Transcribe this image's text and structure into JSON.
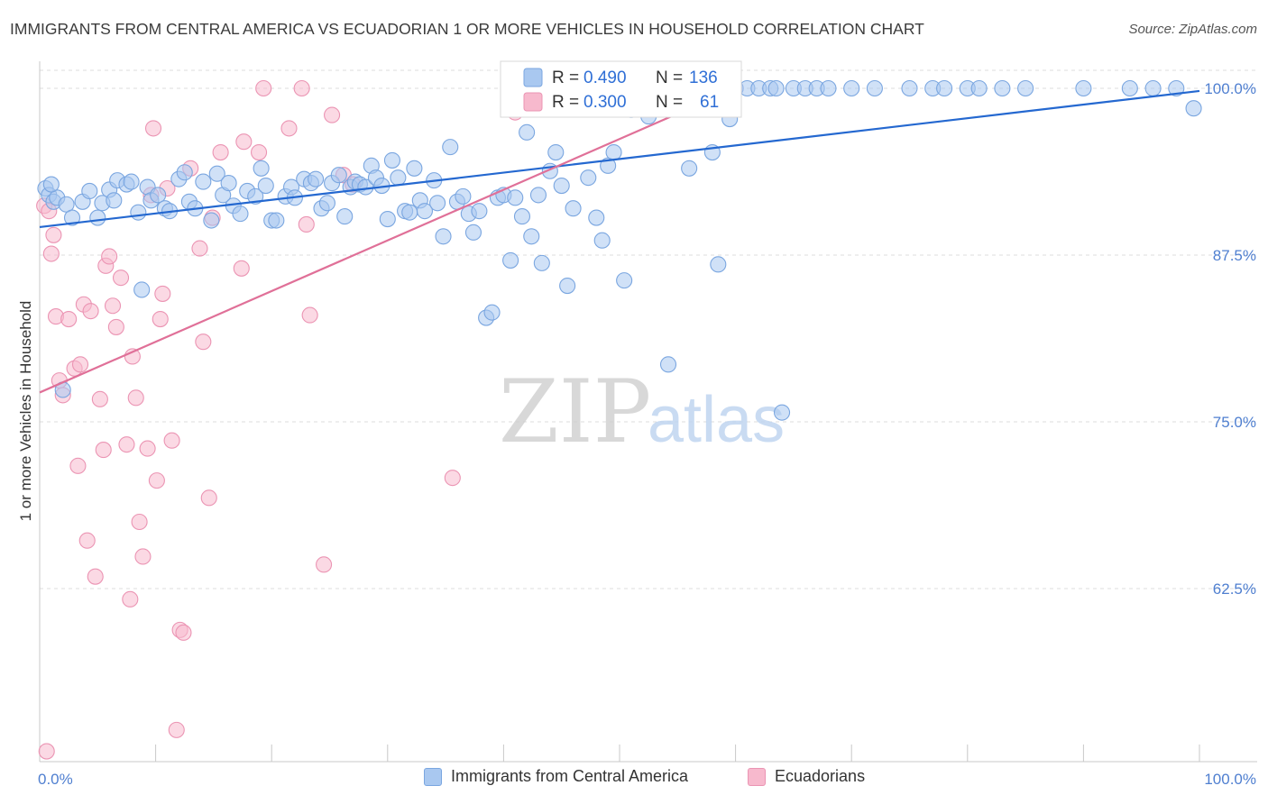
{
  "header": {
    "title": "IMMIGRANTS FROM CENTRAL AMERICA VS ECUADORIAN 1 OR MORE VEHICLES IN HOUSEHOLD CORRELATION CHART",
    "source": "Source: ZipAtlas.com"
  },
  "watermark": {
    "zip": "ZIP",
    "atlas": "atlas"
  },
  "legend_top": {
    "blue": {
      "r_label": "R = ",
      "r_value": "0.490",
      "n_label": "N = ",
      "n_value": "136"
    },
    "pink": {
      "r_label": "R = ",
      "r_value": "0.300",
      "n_label": "N = ",
      "n_value": "61"
    }
  },
  "legend_bottom": {
    "blue_label": "Immigrants from Central America",
    "pink_label": "Ecuadorians"
  },
  "colors": {
    "blue_fill": "#a9c8f0",
    "blue_stroke": "#7aa6e0",
    "blue_line": "#2468d0",
    "pink_fill": "#f7b9cd",
    "pink_stroke": "#eb94b3",
    "pink_line": "#e07098",
    "tick": "#4f7fd0",
    "grid": "#dcdcdc"
  },
  "chart_data": {
    "type": "scatter",
    "title": "IMMIGRANTS FROM CENTRAL AMERICA VS ECUADORIAN 1 OR MORE VEHICLES IN HOUSEHOLD CORRELATION CHART",
    "xlabel": "",
    "ylabel": "1 or more Vehicles in Household",
    "xlim": [
      0,
      100
    ],
    "ylim": [
      50,
      101.5
    ],
    "x_tick_labels": [
      "0.0%",
      "100.0%"
    ],
    "y_ticks": [
      62.5,
      75.0,
      87.5,
      100.0
    ],
    "y_tick_labels": [
      "62.5%",
      "75.0%",
      "87.5%",
      "100.0%"
    ],
    "grid": true,
    "legend_position": "top-center",
    "series": [
      {
        "name": "Immigrants from Central America",
        "color": "#a9c8f0",
        "trend": {
          "x": [
            0,
            100
          ],
          "y": [
            89.6,
            99.8
          ]
        },
        "points": [
          [
            0.5,
            92.5
          ],
          [
            0.8,
            92.0
          ],
          [
            1.2,
            91.5
          ],
          [
            1.5,
            91.8
          ],
          [
            2.3,
            91.3
          ],
          [
            2.8,
            90.3
          ],
          [
            3.7,
            91.5
          ],
          [
            4.3,
            92.3
          ],
          [
            5.0,
            90.3
          ],
          [
            5.4,
            91.4
          ],
          [
            6.0,
            92.4
          ],
          [
            6.4,
            91.6
          ],
          [
            6.7,
            93.1
          ],
          [
            7.5,
            92.8
          ],
          [
            7.9,
            93.0
          ],
          [
            8.5,
            90.7
          ],
          [
            8.8,
            84.9
          ],
          [
            9.3,
            92.6
          ],
          [
            9.6,
            91.6
          ],
          [
            10.2,
            92.0
          ],
          [
            10.8,
            91.0
          ],
          [
            11.2,
            90.8
          ],
          [
            12.0,
            93.2
          ],
          [
            12.5,
            93.7
          ],
          [
            12.9,
            91.5
          ],
          [
            13.4,
            91.0
          ],
          [
            14.1,
            93.0
          ],
          [
            14.8,
            90.1
          ],
          [
            15.3,
            93.6
          ],
          [
            15.8,
            92.0
          ],
          [
            16.3,
            92.9
          ],
          [
            16.7,
            91.2
          ],
          [
            17.3,
            90.6
          ],
          [
            17.9,
            92.3
          ],
          [
            18.6,
            91.9
          ],
          [
            19.1,
            94.0
          ],
          [
            19.5,
            92.7
          ],
          [
            20.0,
            90.1
          ],
          [
            20.4,
            90.1
          ],
          [
            21.2,
            91.9
          ],
          [
            21.7,
            92.6
          ],
          [
            22.0,
            91.8
          ],
          [
            22.8,
            93.2
          ],
          [
            23.4,
            92.9
          ],
          [
            23.8,
            93.2
          ],
          [
            24.3,
            91.0
          ],
          [
            24.8,
            91.4
          ],
          [
            25.2,
            92.9
          ],
          [
            25.8,
            93.5
          ],
          [
            26.3,
            90.4
          ],
          [
            26.8,
            92.6
          ],
          [
            27.2,
            93.0
          ],
          [
            27.6,
            92.8
          ],
          [
            28.1,
            92.6
          ],
          [
            28.6,
            94.2
          ],
          [
            29.0,
            93.3
          ],
          [
            29.5,
            92.7
          ],
          [
            30.0,
            90.2
          ],
          [
            30.4,
            94.6
          ],
          [
            30.9,
            93.3
          ],
          [
            31.5,
            90.8
          ],
          [
            31.9,
            90.7
          ],
          [
            32.3,
            94.0
          ],
          [
            32.8,
            91.6
          ],
          [
            33.2,
            90.8
          ],
          [
            34.0,
            93.1
          ],
          [
            34.3,
            91.4
          ],
          [
            34.8,
            88.9
          ],
          [
            35.4,
            95.6
          ],
          [
            36.0,
            91.5
          ],
          [
            36.5,
            91.9
          ],
          [
            37.0,
            90.6
          ],
          [
            37.4,
            89.2
          ],
          [
            37.9,
            90.8
          ],
          [
            38.5,
            82.8
          ],
          [
            39.0,
            83.2
          ],
          [
            39.5,
            91.8
          ],
          [
            40.0,
            92.0
          ],
          [
            40.6,
            87.1
          ],
          [
            41.0,
            91.8
          ],
          [
            41.6,
            90.4
          ],
          [
            42.0,
            96.7
          ],
          [
            42.4,
            88.9
          ],
          [
            43.0,
            92.0
          ],
          [
            43.3,
            86.9
          ],
          [
            44.0,
            93.8
          ],
          [
            44.5,
            95.2
          ],
          [
            45.0,
            92.7
          ],
          [
            45.5,
            85.2
          ],
          [
            46.0,
            91.0
          ],
          [
            46.5,
            100.0
          ],
          [
            47.3,
            93.3
          ],
          [
            48.0,
            90.3
          ],
          [
            48.5,
            88.6
          ],
          [
            49.0,
            94.2
          ],
          [
            49.5,
            95.2
          ],
          [
            50.4,
            85.6
          ],
          [
            51.0,
            98.4
          ],
          [
            52.5,
            97.9
          ],
          [
            53.0,
            100.0
          ],
          [
            54.2,
            79.3
          ],
          [
            55.0,
            100.0
          ],
          [
            56.0,
            94.0
          ],
          [
            57.0,
            99.8
          ],
          [
            58.0,
            95.2
          ],
          [
            58.5,
            86.8
          ],
          [
            59.5,
            97.7
          ],
          [
            60.0,
            100.0
          ],
          [
            61.0,
            100.0
          ],
          [
            62.0,
            100.0
          ],
          [
            63.0,
            100.0
          ],
          [
            63.5,
            100.0
          ],
          [
            64.0,
            75.7
          ],
          [
            65.0,
            100.0
          ],
          [
            66.0,
            100.0
          ],
          [
            67.0,
            100.0
          ],
          [
            68.0,
            100.0
          ],
          [
            70.0,
            100.0
          ],
          [
            72.0,
            100.0
          ],
          [
            75.0,
            100.0
          ],
          [
            77.0,
            100.0
          ],
          [
            78.0,
            100.0
          ],
          [
            80.0,
            100.0
          ],
          [
            81.0,
            100.0
          ],
          [
            83.0,
            100.0
          ],
          [
            85.0,
            100.0
          ],
          [
            90.0,
            100.0
          ],
          [
            94.0,
            100.0
          ],
          [
            96.0,
            100.0
          ],
          [
            98.0,
            100.0
          ],
          [
            2.0,
            77.4
          ],
          [
            1.0,
            92.8
          ],
          [
            45.5,
            100.0
          ],
          [
            47.0,
            100.0
          ],
          [
            48.0,
            100.0
          ],
          [
            99.5,
            98.5
          ]
        ]
      },
      {
        "name": "Ecuadorians",
        "color": "#f7b9cd",
        "trend": {
          "x": [
            0,
            60
          ],
          "y": [
            77.2,
            100.0
          ]
        },
        "points": [
          [
            0.4,
            91.2
          ],
          [
            0.8,
            90.8
          ],
          [
            1.0,
            87.6
          ],
          [
            1.2,
            89.0
          ],
          [
            1.4,
            82.9
          ],
          [
            1.7,
            78.1
          ],
          [
            2.0,
            77.0
          ],
          [
            2.5,
            82.7
          ],
          [
            3.0,
            79.0
          ],
          [
            3.3,
            71.7
          ],
          [
            3.5,
            79.3
          ],
          [
            3.8,
            83.8
          ],
          [
            4.1,
            66.1
          ],
          [
            4.4,
            83.3
          ],
          [
            4.8,
            63.4
          ],
          [
            5.2,
            76.7
          ],
          [
            5.5,
            72.9
          ],
          [
            5.7,
            86.7
          ],
          [
            6.0,
            87.4
          ],
          [
            6.3,
            83.7
          ],
          [
            6.6,
            82.1
          ],
          [
            7.0,
            85.8
          ],
          [
            7.5,
            73.3
          ],
          [
            7.8,
            61.7
          ],
          [
            8.0,
            79.9
          ],
          [
            8.3,
            76.8
          ],
          [
            8.6,
            67.5
          ],
          [
            8.9,
            64.9
          ],
          [
            9.3,
            73.0
          ],
          [
            9.6,
            92.0
          ],
          [
            9.8,
            97.0
          ],
          [
            10.1,
            70.6
          ],
          [
            10.4,
            82.7
          ],
          [
            10.6,
            84.6
          ],
          [
            11.0,
            92.5
          ],
          [
            11.4,
            73.6
          ],
          [
            11.8,
            51.9
          ],
          [
            12.1,
            59.4
          ],
          [
            12.4,
            59.2
          ],
          [
            13.0,
            94.0
          ],
          [
            13.8,
            88.0
          ],
          [
            14.1,
            81.0
          ],
          [
            14.6,
            69.3
          ],
          [
            14.9,
            90.3
          ],
          [
            15.6,
            95.2
          ],
          [
            17.4,
            86.5
          ],
          [
            17.6,
            96.0
          ],
          [
            18.9,
            95.2
          ],
          [
            19.3,
            100.0
          ],
          [
            21.5,
            97.0
          ],
          [
            22.6,
            100.0
          ],
          [
            23.0,
            89.8
          ],
          [
            23.3,
            83.0
          ],
          [
            24.5,
            64.3
          ],
          [
            25.2,
            98.0
          ],
          [
            26.2,
            93.5
          ],
          [
            27.0,
            92.8
          ],
          [
            35.6,
            70.8
          ],
          [
            41.0,
            98.2
          ],
          [
            0.6,
            50.3
          ],
          [
            60.0,
            100.0
          ]
        ]
      }
    ]
  }
}
